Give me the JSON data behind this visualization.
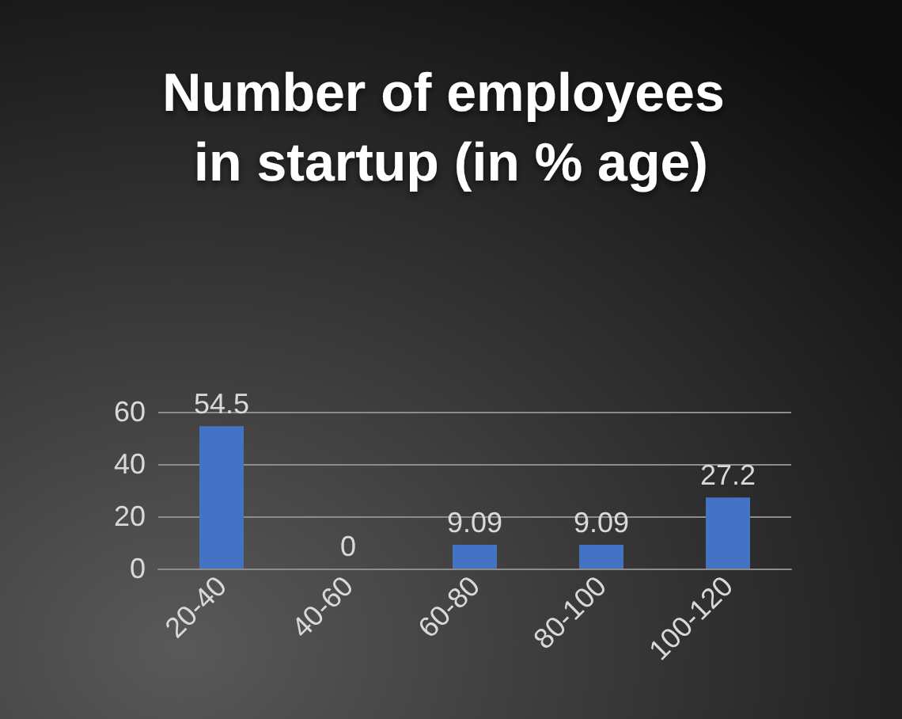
{
  "chart_data": {
    "type": "bar",
    "title": "Number of employees in startup (in % age)",
    "categories": [
      "20-40",
      "40-60",
      "60-80",
      "80-100",
      "100-120"
    ],
    "values": [
      54.5,
      0,
      9.09,
      9.09,
      27.2
    ],
    "color": "#4472c4",
    "ylim": [
      0,
      60
    ],
    "yticks": [
      0,
      20,
      40,
      60
    ],
    "grid": "y",
    "data_labels": true
  }
}
